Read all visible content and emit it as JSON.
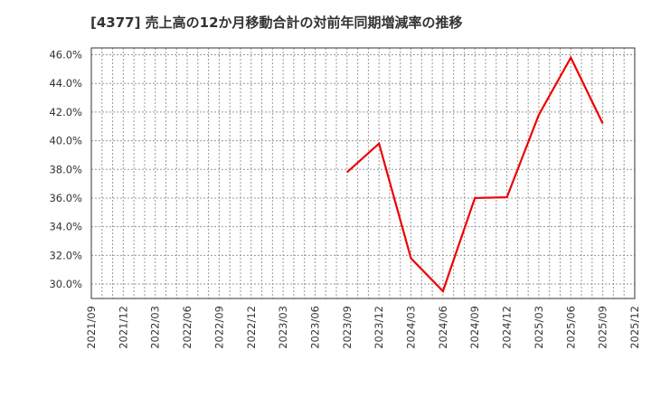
{
  "title": "[4377]  売上高の12か月移動合計の対前年同期増減率の推移",
  "colors": {
    "line": "#ee0000",
    "grid": "#999999",
    "axis": "#333333",
    "text": "#333333",
    "background": "#ffffff"
  },
  "chart_data": {
    "type": "line",
    "title": "[4377]  売上高の12か月移動合計の対前年同期増減率の推移",
    "xlabel": "",
    "ylabel": "",
    "ylim": [
      29.0,
      46.5
    ],
    "grid": true,
    "legend": null,
    "x_tick_labels": [
      "2021/09",
      "2021/12",
      "2022/03",
      "2022/06",
      "2022/09",
      "2022/12",
      "2023/03",
      "2023/06",
      "2023/09",
      "2023/12",
      "2024/03",
      "2024/06",
      "2024/09",
      "2024/12",
      "2025/03",
      "2025/06",
      "2025/09",
      "2025/12"
    ],
    "y_tick_labels": [
      "30.0%",
      "32.0%",
      "34.0%",
      "36.0%",
      "38.0%",
      "40.0%",
      "42.0%",
      "44.0%",
      "46.0%"
    ],
    "y_ticks": [
      30,
      32,
      34,
      36,
      38,
      40,
      42,
      44,
      46
    ],
    "series": [
      {
        "name": "売上高の12か月移動合計の対前年同期増減率",
        "x": [
          "2023/09",
          "2023/12",
          "2024/03",
          "2024/06",
          "2024/09",
          "2024/12",
          "2025/03",
          "2025/06",
          "2025/09"
        ],
        "values": [
          37.8,
          39.8,
          31.8,
          29.5,
          36.0,
          36.05,
          41.8,
          45.8,
          41.2
        ]
      }
    ]
  }
}
